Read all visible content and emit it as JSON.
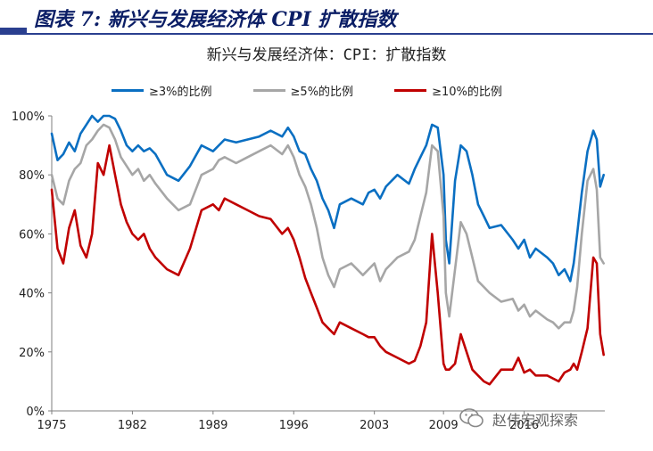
{
  "figure_title": "图表 7: 新兴与发展经济体 CPI 扩散指数",
  "watermark": "赵伟宏观探索",
  "colors": {
    "series1": "#0a6fc2",
    "series2": "#a6a6a6",
    "series3": "#c00000",
    "axis": "#7f7f7f",
    "title_bar": "#0b1e66"
  },
  "chart_data": {
    "type": "line",
    "title": "新兴与发展经济体：CPI：扩散指数",
    "xlabel": "",
    "ylabel": "",
    "xlim": [
      1975,
      2023
    ],
    "ylim": [
      0,
      100
    ],
    "xticks": [
      1975,
      1982,
      1989,
      1996,
      2003,
      2009,
      2016
    ],
    "xtick_labels": [
      "1975",
      "1982",
      "1989",
      "1996",
      "2003",
      "2009",
      "2016"
    ],
    "yticks": [
      0,
      20,
      40,
      60,
      80,
      100
    ],
    "ytick_labels": [
      "0%",
      "20%",
      "40%",
      "60%",
      "80%",
      "100%"
    ],
    "grid": false,
    "legend_position": "top",
    "series": [
      {
        "name": "≥3%的比例",
        "color": "#0a6fc2",
        "x": [
          1975,
          1975.5,
          1976,
          1976.5,
          1977,
          1977.5,
          1978,
          1978.5,
          1979,
          1979.5,
          1980,
          1980.5,
          1981,
          1981.5,
          1982,
          1982.5,
          1983,
          1983.5,
          1984,
          1985,
          1986,
          1987,
          1988,
          1989,
          1989.5,
          1990,
          1991,
          1992,
          1993,
          1994,
          1995,
          1995.5,
          1996,
          1996.5,
          1997,
          1997.5,
          1998,
          1998.5,
          1999,
          1999.5,
          2000,
          2001,
          2002,
          2002.5,
          2003,
          2003.5,
          2004,
          2005,
          2006,
          2006.5,
          2007,
          2007.5,
          2008,
          2008.5,
          2009,
          2009.2,
          2009.5,
          2010,
          2010.5,
          2011,
          2011.5,
          2012,
          2012.5,
          2013,
          2014,
          2015,
          2015.5,
          2016,
          2016.5,
          2017,
          2018,
          2018.5,
          2019,
          2019.5,
          2020,
          2020.3,
          2020.6,
          2021,
          2021.5,
          2022,
          2022.3,
          2022.6,
          2022.9
        ],
        "values": [
          94,
          85,
          87,
          91,
          88,
          94,
          97,
          100,
          98,
          100,
          100,
          99,
          95,
          90,
          88,
          90,
          88,
          89,
          87,
          80,
          78,
          83,
          90,
          88,
          90,
          92,
          91,
          92,
          93,
          95,
          93,
          96,
          93,
          88,
          87,
          82,
          78,
          72,
          68,
          62,
          70,
          72,
          70,
          74,
          75,
          72,
          76,
          80,
          77,
          82,
          86,
          90,
          97,
          96,
          80,
          58,
          50,
          78,
          90,
          88,
          80,
          70,
          66,
          62,
          63,
          58,
          55,
          58,
          52,
          55,
          52,
          50,
          46,
          48,
          44,
          50,
          60,
          74,
          88,
          95,
          92,
          76,
          80
        ]
      },
      {
        "name": "≥5%的比例",
        "color": "#a6a6a6",
        "x": [
          1975,
          1975.5,
          1976,
          1976.5,
          1977,
          1977.5,
          1978,
          1978.5,
          1979,
          1979.5,
          1980,
          1980.5,
          1981,
          1981.5,
          1982,
          1982.5,
          1983,
          1983.5,
          1984,
          1985,
          1986,
          1987,
          1988,
          1989,
          1989.5,
          1990,
          1991,
          1992,
          1993,
          1994,
          1995,
          1995.5,
          1996,
          1996.5,
          1997,
          1997.5,
          1998,
          1998.5,
          1999,
          1999.5,
          2000,
          2001,
          2002,
          2002.5,
          2003,
          2003.5,
          2004,
          2005,
          2006,
          2006.5,
          2007,
          2007.5,
          2008,
          2008.5,
          2009,
          2009.2,
          2009.5,
          2010,
          2010.5,
          2011,
          2011.5,
          2012,
          2012.5,
          2013,
          2014,
          2015,
          2015.5,
          2016,
          2016.5,
          2017,
          2018,
          2018.5,
          2019,
          2019.5,
          2020,
          2020.3,
          2020.6,
          2021,
          2021.5,
          2022,
          2022.3,
          2022.6,
          2022.9
        ],
        "values": [
          80,
          72,
          70,
          78,
          82,
          84,
          90,
          92,
          95,
          97,
          96,
          92,
          86,
          83,
          80,
          82,
          78,
          80,
          77,
          72,
          68,
          70,
          80,
          82,
          85,
          86,
          84,
          86,
          88,
          90,
          87,
          90,
          86,
          80,
          76,
          70,
          62,
          52,
          46,
          42,
          48,
          50,
          46,
          48,
          50,
          44,
          48,
          52,
          54,
          58,
          66,
          74,
          90,
          88,
          66,
          40,
          32,
          48,
          64,
          60,
          52,
          44,
          42,
          40,
          37,
          38,
          34,
          36,
          32,
          34,
          31,
          30,
          28,
          30,
          30,
          34,
          42,
          60,
          78,
          82,
          75,
          52,
          50
        ]
      },
      {
        "name": "≥10%的比例",
        "color": "#c00000",
        "x": [
          1975,
          1975.5,
          1976,
          1976.5,
          1977,
          1977.5,
          1978,
          1978.5,
          1979,
          1979.5,
          1980,
          1980.5,
          1981,
          1981.5,
          1982,
          1982.5,
          1983,
          1983.5,
          1984,
          1985,
          1986,
          1987,
          1988,
          1989,
          1989.5,
          1990,
          1991,
          1992,
          1993,
          1994,
          1995,
          1995.5,
          1996,
          1996.5,
          1997,
          1997.5,
          1998,
          1998.5,
          1999,
          1999.5,
          2000,
          2001,
          2002,
          2002.5,
          2003,
          2003.5,
          2004,
          2005,
          2006,
          2006.5,
          2007,
          2007.5,
          2008,
          2008.5,
          2009,
          2009.2,
          2009.5,
          2010,
          2010.5,
          2011,
          2011.5,
          2012,
          2012.5,
          2013,
          2014,
          2015,
          2015.5,
          2016,
          2016.5,
          2017,
          2018,
          2018.5,
          2019,
          2019.5,
          2020,
          2020.3,
          2020.6,
          2021,
          2021.5,
          2022,
          2022.3,
          2022.6,
          2022.9
        ],
        "values": [
          75,
          55,
          50,
          62,
          68,
          56,
          52,
          60,
          84,
          80,
          90,
          80,
          70,
          64,
          60,
          58,
          60,
          55,
          52,
          48,
          46,
          55,
          68,
          70,
          68,
          72,
          70,
          68,
          66,
          65,
          60,
          62,
          58,
          52,
          45,
          40,
          35,
          30,
          28,
          26,
          30,
          28,
          26,
          25,
          25,
          22,
          20,
          18,
          16,
          17,
          22,
          30,
          60,
          40,
          16,
          14,
          14,
          16,
          26,
          20,
          14,
          12,
          10,
          9,
          14,
          14,
          18,
          13,
          14,
          12,
          12,
          11,
          10,
          13,
          14,
          16,
          14,
          20,
          28,
          52,
          50,
          26,
          19
        ]
      }
    ]
  }
}
